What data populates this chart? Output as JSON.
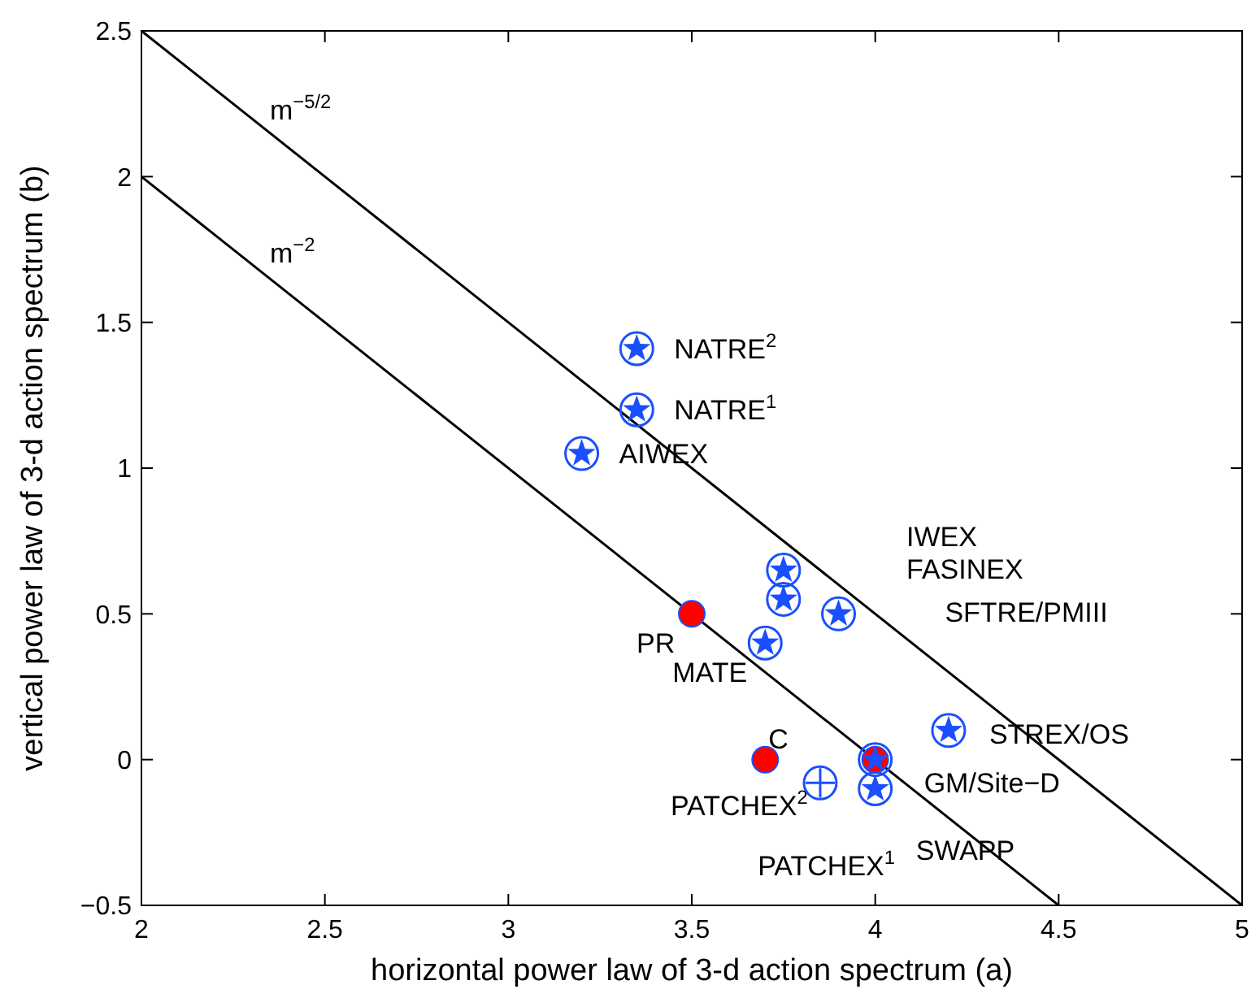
{
  "chart_data": {
    "type": "scatter",
    "xlabel": "horizontal power law of 3-d action spectrum (a)",
    "ylabel": "vertical power law of 3-d action spectrum (b)",
    "xlim": [
      2,
      5
    ],
    "ylim": [
      -0.5,
      2.5
    ],
    "xticks": [
      2,
      2.5,
      3,
      3.5,
      4,
      4.5,
      5
    ],
    "yticks": [
      -0.5,
      0,
      0.5,
      1,
      1.5,
      2,
      2.5
    ],
    "grid": false,
    "series": [
      {
        "type": "line",
        "color": "#000000",
        "marker": "none",
        "line_style": "solid",
        "x": [
          2,
          5
        ],
        "values": [
          2.5,
          -0.5
        ]
      },
      {
        "type": "line",
        "color": "#000000",
        "marker": "none",
        "line_style": "solid",
        "x": [
          2,
          4.5
        ],
        "values": [
          2,
          -0.5
        ]
      },
      {
        "color": "#ff0000",
        "marker": "circle",
        "x": [
          3.5,
          3.7,
          4.0
        ],
        "values": [
          0.5,
          0,
          0
        ]
      },
      {
        "color": "#1a4fff",
        "marker": "circle",
        "x": [
          3.35,
          3.35,
          3.2,
          3.75,
          3.75,
          3.9,
          3.7,
          4.2,
          4.0,
          4.0
        ],
        "values": [
          1.41,
          1.2,
          1.05,
          0.65,
          0.55,
          0.5,
          0.4,
          0.1,
          0,
          -0.1
        ]
      },
      {
        "color": "#1a4fff",
        "marker": "circle",
        "x": [
          3.85
        ],
        "values": [
          -0.08
        ]
      }
    ],
    "annotations": [
      {
        "text": "m$^{−5/2}$",
        "x": 2.35,
        "y": 2.15
      },
      {
        "text": "m$^{−2}$",
        "x": 2.35,
        "y": 1.65
      },
      {
        "text": "NATRE$^{2}$",
        "x": 3.35,
        "y": 1.41
      },
      {
        "text": "NATRE$^{1}$",
        "x": 3.35,
        "y": 1.2
      },
      {
        "text": "AIWEX",
        "x": 3.2,
        "y": 1.05
      },
      "IWEX",
      "FASINEX",
      "SFTRE/PMIII",
      {
        "text": "PR",
        "x": 3.5,
        "y": 0.5
      },
      {
        "text": "MATE",
        "x": 3.7,
        "y": 0.4
      },
      {
        "text": "C",
        "x": 3.7,
        "y": 0
      },
      {
        "text": "STREX/OS",
        "x": 4.2,
        "y": 0.1
      },
      {
        "text": "GM/Site−D",
        "x": 4.0,
        "y": 0
      },
      {
        "text": "PATCHEX$^{2}$",
        "x": 3.85,
        "y": -0.08
      },
      {
        "text": "SWAPP",
        "x": 4.0,
        "y": -0.1
      },
      "PATCHEX$^{1}$"
    ]
  }
}
